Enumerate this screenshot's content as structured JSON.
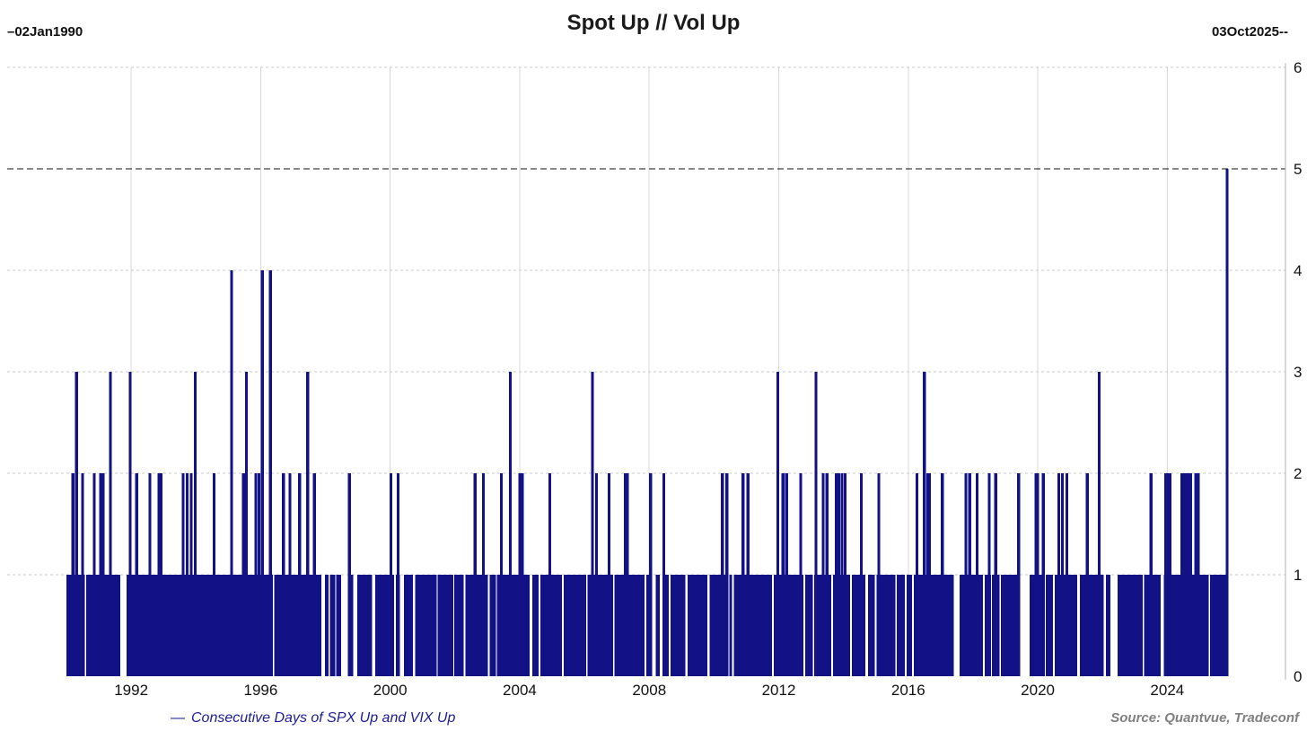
{
  "title": "Spot Up // Vol Up",
  "header": {
    "start_date_label": "–02Jan1990",
    "end_date_label": "03Oct2025--"
  },
  "legend": {
    "marker": "—",
    "label": "Consecutive Days of SPX Up and VIX Up"
  },
  "source": "Source: Quantvue, Tradeconf",
  "colors": {
    "bar": "#121286",
    "legend_text": "#1c1c96",
    "reference_line": "#111111",
    "h_grid": "#cacaca",
    "v_grid": "#d8d8d8",
    "axis_line": "#b3b3b3",
    "tick_text": "#111111",
    "source_text": "#808080"
  },
  "chart_data": {
    "type": "bar",
    "title": "Spot Up // Vol Up",
    "series_name": "Consecutive Days of SPX Up and VIX Up",
    "x_start_date": "02Jan1990",
    "x_end_date": "03Oct2025",
    "ylabel": "",
    "xlabel": "",
    "ylim": [
      0,
      6
    ],
    "yticks": [
      0,
      1,
      2,
      3,
      4,
      5,
      6
    ],
    "xticks": [
      1992,
      1996,
      2000,
      2004,
      2008,
      2012,
      2016,
      2020,
      2024
    ],
    "x_domain": [
      1988.17,
      2027.65
    ],
    "grid": "on",
    "legend_position": "bottom-left",
    "reference_line_y": 5,
    "max_streak": {
      "value": 5,
      "date": "03Oct2025"
    },
    "baseline_runs": [
      [
        1990.0,
        1990.57
      ],
      [
        1990.61,
        1991.67
      ],
      [
        1991.86,
        1996.38
      ],
      [
        1996.42,
        1997.87
      ],
      [
        1997.99,
        1998.1
      ],
      [
        1998.14,
        1998.3
      ],
      [
        1998.33,
        1998.48
      ],
      [
        1998.76,
        1998.86
      ],
      [
        1998.98,
        1999.44
      ],
      [
        1999.54,
        2000.12
      ],
      [
        2000.17,
        2000.3
      ],
      [
        2000.43,
        2000.7
      ],
      [
        2000.77,
        2001.43
      ],
      [
        2001.47,
        2001.95
      ],
      [
        2001.98,
        2002.27
      ],
      [
        2002.33,
        2003.02
      ],
      [
        2003.07,
        2003.26
      ],
      [
        2003.3,
        2004.3
      ],
      [
        2004.39,
        2004.58
      ],
      [
        2004.64,
        2005.3
      ],
      [
        2005.36,
        2006.05
      ],
      [
        2006.1,
        2006.88
      ],
      [
        2006.92,
        2007.86
      ],
      [
        2007.91,
        2007.99
      ],
      [
        2008.03,
        2008.09
      ],
      [
        2008.2,
        2008.32
      ],
      [
        2008.44,
        2008.6
      ],
      [
        2008.66,
        2009.12
      ],
      [
        2009.18,
        2009.8
      ],
      [
        2009.87,
        2010.42
      ],
      [
        2010.48,
        2010.56
      ],
      [
        2010.62,
        2011.79
      ],
      [
        2011.84,
        2012.76
      ],
      [
        2012.82,
        2013.05
      ],
      [
        2013.1,
        2013.62
      ],
      [
        2013.67,
        2014.2
      ],
      [
        2014.26,
        2014.68
      ],
      [
        2014.76,
        2014.97
      ],
      [
        2015.02,
        2015.6
      ],
      [
        2015.65,
        2015.9
      ],
      [
        2015.95,
        2016.12
      ],
      [
        2016.17,
        2017.41
      ],
      [
        2017.58,
        2018.3
      ],
      [
        2018.36,
        2018.55
      ],
      [
        2018.58,
        2018.82
      ],
      [
        2018.86,
        2019.41
      ],
      [
        2019.75,
        2020.19
      ],
      [
        2020.25,
        2020.47
      ],
      [
        2020.53,
        2021.22
      ],
      [
        2021.3,
        2021.86
      ],
      [
        2021.91,
        2022.04
      ],
      [
        2022.11,
        2022.25
      ],
      [
        2022.47,
        2023.24
      ],
      [
        2023.28,
        2023.8
      ],
      [
        2023.89,
        2024.86
      ],
      [
        2024.93,
        2025.28
      ],
      [
        2025.32,
        2025.87
      ]
    ],
    "spikes": [
      [
        1990.2,
        2
      ],
      [
        1990.31,
        3
      ],
      [
        1990.5,
        2
      ],
      [
        1990.86,
        2
      ],
      [
        1991.06,
        2
      ],
      [
        1991.14,
        2
      ],
      [
        1991.36,
        3
      ],
      [
        1991.97,
        3
      ],
      [
        1992.17,
        2
      ],
      [
        1992.58,
        2
      ],
      [
        1992.86,
        2
      ],
      [
        1992.92,
        2
      ],
      [
        1993.6,
        2
      ],
      [
        1993.73,
        2
      ],
      [
        1993.85,
        2
      ],
      [
        1993.98,
        3
      ],
      [
        1994.56,
        2
      ],
      [
        1995.1,
        4
      ],
      [
        1995.47,
        2
      ],
      [
        1995.56,
        3
      ],
      [
        1995.85,
        2
      ],
      [
        1995.95,
        2
      ],
      [
        1996.05,
        4
      ],
      [
        1996.3,
        4
      ],
      [
        1996.7,
        2
      ],
      [
        1996.9,
        2
      ],
      [
        1997.2,
        2
      ],
      [
        1997.45,
        3
      ],
      [
        1997.66,
        2
      ],
      [
        1998.74,
        2
      ],
      [
        2000.02,
        2
      ],
      [
        2000.24,
        2
      ],
      [
        2002.62,
        2
      ],
      [
        2002.88,
        2
      ],
      [
        2003.43,
        2
      ],
      [
        2003.71,
        3
      ],
      [
        2004.0,
        2
      ],
      [
        2004.08,
        2
      ],
      [
        2004.93,
        2
      ],
      [
        2006.25,
        3
      ],
      [
        2006.37,
        2
      ],
      [
        2006.76,
        2
      ],
      [
        2007.26,
        2
      ],
      [
        2007.33,
        2
      ],
      [
        2008.04,
        2
      ],
      [
        2008.45,
        2
      ],
      [
        2010.26,
        2
      ],
      [
        2010.4,
        2
      ],
      [
        2010.9,
        2
      ],
      [
        2011.05,
        2
      ],
      [
        2011.97,
        3
      ],
      [
        2012.13,
        2
      ],
      [
        2012.24,
        2
      ],
      [
        2012.68,
        2
      ],
      [
        2013.15,
        3
      ],
      [
        2013.37,
        2
      ],
      [
        2013.49,
        2
      ],
      [
        2013.78,
        2
      ],
      [
        2013.85,
        2
      ],
      [
        2013.95,
        2
      ],
      [
        2014.05,
        2
      ],
      [
        2014.55,
        2
      ],
      [
        2015.09,
        2
      ],
      [
        2016.27,
        2
      ],
      [
        2016.5,
        3
      ],
      [
        2016.6,
        2
      ],
      [
        2016.66,
        2
      ],
      [
        2017.05,
        2
      ],
      [
        2017.78,
        2
      ],
      [
        2017.9,
        2
      ],
      [
        2018.13,
        2
      ],
      [
        2018.5,
        2
      ],
      [
        2018.7,
        2
      ],
      [
        2019.41,
        2
      ],
      [
        2019.95,
        2
      ],
      [
        2020.0,
        2
      ],
      [
        2020.17,
        2
      ],
      [
        2020.65,
        2
      ],
      [
        2020.76,
        2
      ],
      [
        2020.9,
        2
      ],
      [
        2021.53,
        2
      ],
      [
        2021.9,
        3
      ],
      [
        2023.5,
        2
      ],
      [
        2023.95,
        2
      ],
      [
        2024.02,
        2
      ],
      [
        2024.08,
        2
      ],
      [
        2024.45,
        2
      ],
      [
        2024.52,
        2
      ],
      [
        2024.6,
        2
      ],
      [
        2024.68,
        2
      ],
      [
        2024.72,
        2
      ],
      [
        2024.88,
        2
      ],
      [
        2024.96,
        2
      ],
      [
        2025.85,
        5
      ]
    ]
  }
}
